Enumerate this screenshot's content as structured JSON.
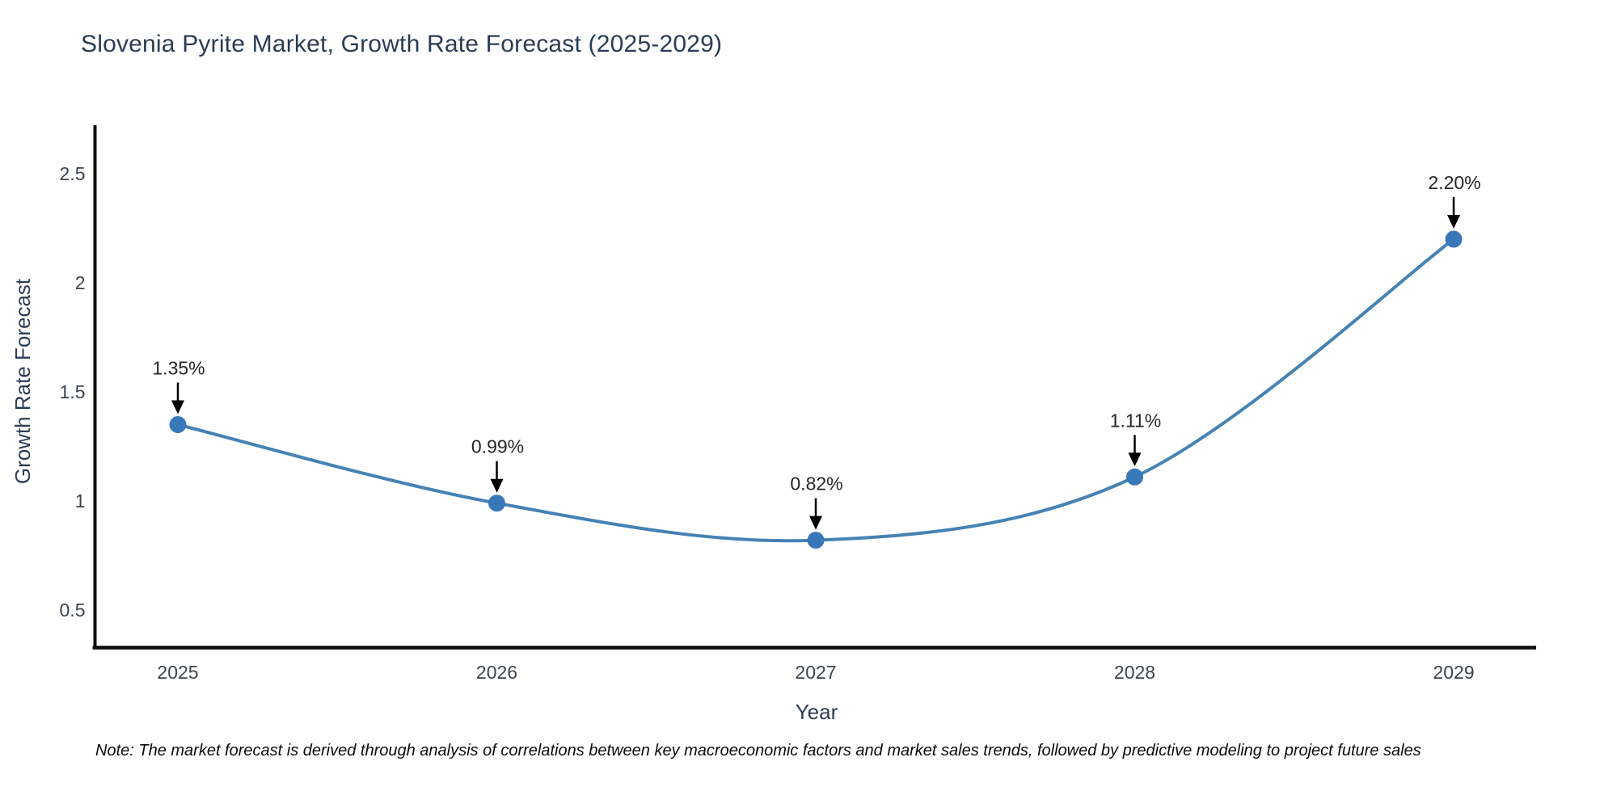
{
  "title": "Slovenia Pyrite Market, Growth Rate Forecast (2025-2029)",
  "note": "Note: The market forecast is derived through analysis of correlations between key macroeconomic factors and market sales trends, followed by predictive modeling to project future sales",
  "chart_data": {
    "type": "line",
    "title": "Slovenia Pyrite Market, Growth Rate Forecast (2025-2029)",
    "xlabel": "Year",
    "ylabel": "Growth Rate Forecast",
    "categories": [
      "2025",
      "2026",
      "2027",
      "2028",
      "2029"
    ],
    "series": [
      {
        "name": "Growth Rate Forecast",
        "values": [
          1.35,
          0.99,
          0.82,
          1.11,
          2.2
        ]
      }
    ],
    "point_labels": [
      "1.35%",
      "0.99%",
      "0.82%",
      "1.11%",
      "2.20%"
    ],
    "yticks": [
      0.5,
      1,
      1.5,
      2,
      2.5
    ],
    "ytick_labels": [
      "0.5",
      "1",
      "1.5",
      "2",
      "2.5"
    ],
    "ylim": [
      0.33,
      2.83
    ],
    "grid": false,
    "legend": "none",
    "smooth": true,
    "colors": {
      "line": "#4682b4",
      "marker": "#3878b8",
      "axis": "#0d0d0d",
      "annotation_arrow": "#000000",
      "title_text": "#2b3c55",
      "tick_text": "#3d434e"
    }
  }
}
